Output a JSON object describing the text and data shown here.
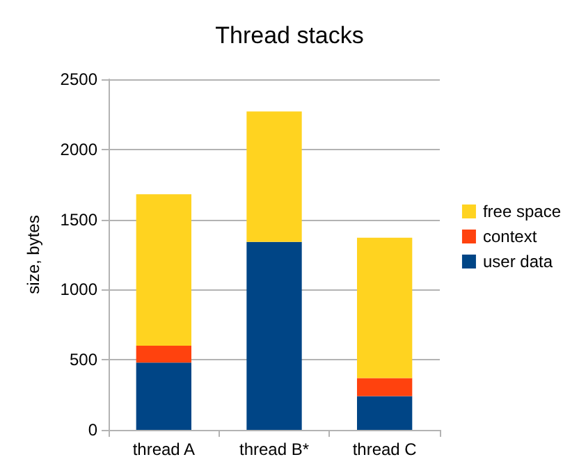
{
  "chart_data": {
    "type": "bar",
    "title": "Thread stacks",
    "ylabel": "size, bytes",
    "categories": [
      "thread A",
      "thread B*",
      "thread C"
    ],
    "stacked": true,
    "series": [
      {
        "name": "user data",
        "color": "#004586",
        "values": [
          480,
          1340,
          240
        ]
      },
      {
        "name": "context",
        "color": "#ff420e",
        "values": [
          120,
          0,
          130
        ]
      },
      {
        "name": "free space",
        "color": "#ffd320",
        "values": [
          1080,
          930,
          1000
        ]
      }
    ],
    "ylim": [
      0,
      2500
    ],
    "yticks": [
      0,
      500,
      1000,
      1500,
      2000,
      2500
    ],
    "grid": "y",
    "legend": "right"
  }
}
